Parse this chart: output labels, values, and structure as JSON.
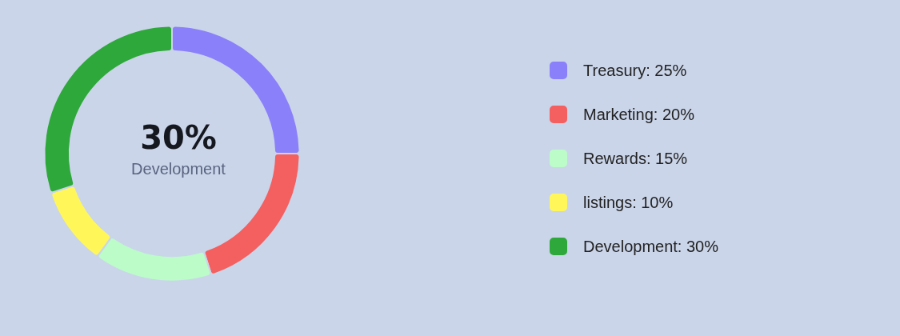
{
  "chart_data": {
    "type": "donut",
    "categories": [
      "Treasury: 25%",
      "Marketing: 20%",
      "Rewards: 15%",
      "listings: 10%",
      "Development: 30%"
    ],
    "values": [
      25,
      20,
      15,
      10,
      30
    ],
    "colors": [
      "#8a80fa",
      "#f45f5f",
      "#bbfcc8",
      "#fff75a",
      "#2ea83a"
    ],
    "annotations": [
      "30%",
      "Development"
    ],
    "legend": "right"
  }
}
